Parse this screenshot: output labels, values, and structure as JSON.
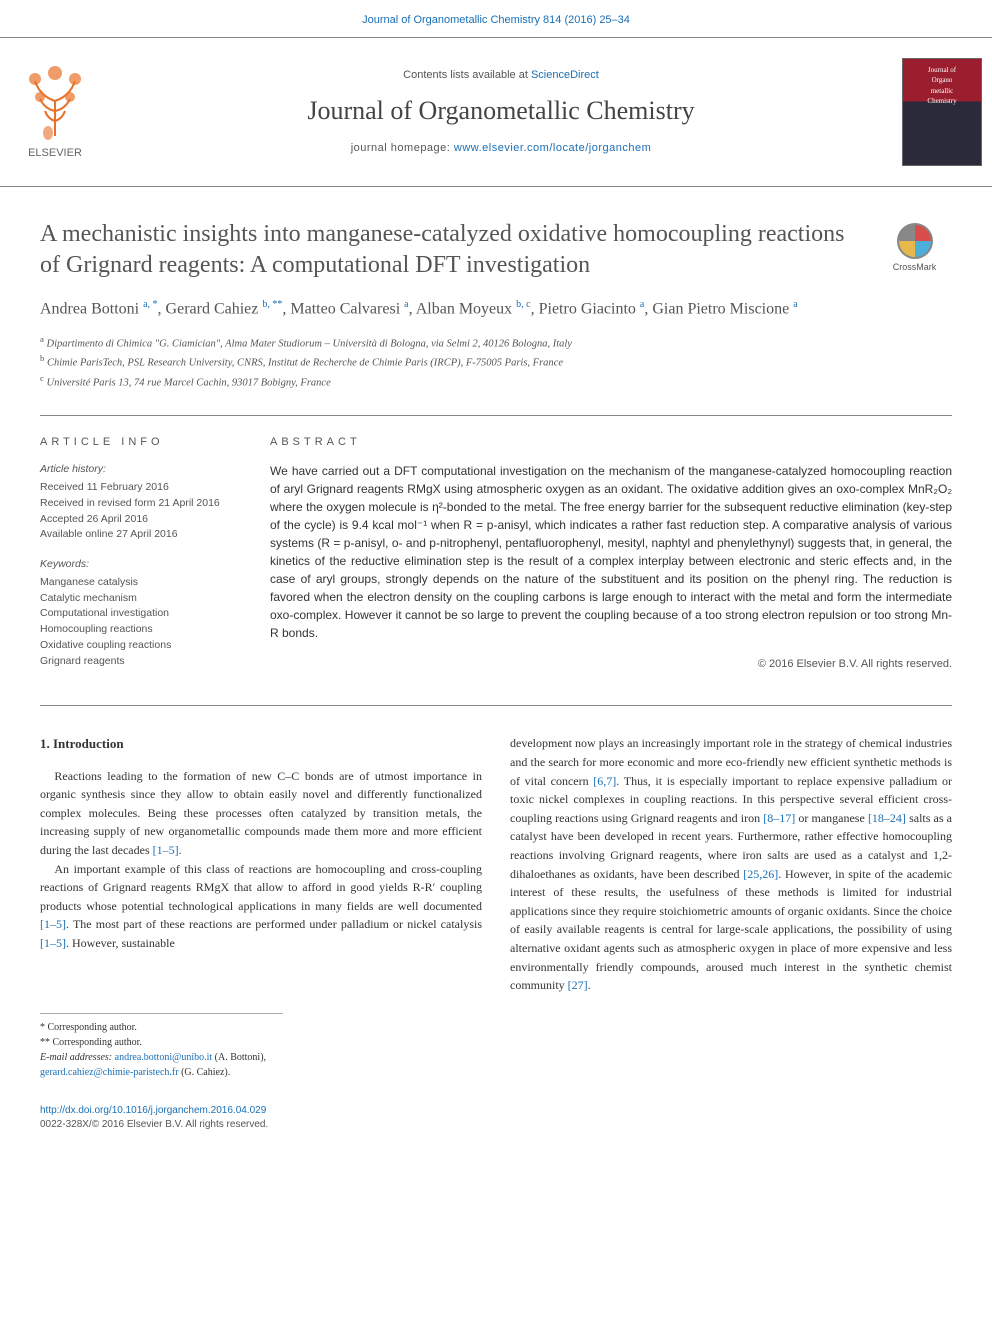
{
  "top_link": "Journal of Organometallic Chemistry 814 (2016) 25–34",
  "header": {
    "contents_text": "Contents lists available at ",
    "sciencedirect": "ScienceDirect",
    "journal_name": "Journal of Organometallic Chemistry",
    "homepage_label": "journal homepage: ",
    "homepage_url": "www.elsevier.com/locate/jorganchem",
    "elsevier": "ELSEVIER",
    "cover_line1": "Journal of",
    "cover_line2": "Organo",
    "cover_line3": "metallic",
    "cover_line4": "Chemistry"
  },
  "article": {
    "title": "A mechanistic insights into manganese-catalyzed oxidative homocoupling reactions of Grignard reagents: A computational DFT investigation",
    "crossmark": "CrossMark",
    "authors_html": "Andrea Bottoni <sup>a, *</sup>, Gerard Cahiez <sup>b, **</sup>, Matteo Calvaresi <sup>a</sup>, Alban Moyeux <sup>b, c</sup>, Pietro Giacinto <sup>a</sup>, Gian Pietro Miscione <sup>a</sup>",
    "affiliations": {
      "a": "Dipartimento di Chimica \"G. Ciamician\", Alma Mater Studiorum – Università di Bologna, via Selmi 2, 40126 Bologna, Italy",
      "b": "Chimie ParisTech, PSL Research University, CNRS, Institut de Recherche de Chimie Paris (IRCP), F-75005 Paris, France",
      "c": "Université Paris 13, 74 rue Marcel Cachin, 93017 Bobigny, France"
    }
  },
  "info": {
    "heading": "ARTICLE INFO",
    "history_label": "Article history:",
    "received": "Received 11 February 2016",
    "revised": "Received in revised form 21 April 2016",
    "accepted": "Accepted 26 April 2016",
    "online": "Available online 27 April 2016",
    "keywords_label": "Keywords:",
    "kw1": "Manganese catalysis",
    "kw2": "Catalytic mechanism",
    "kw3": "Computational investigation",
    "kw4": "Homocoupling reactions",
    "kw5": "Oxidative coupling reactions",
    "kw6": "Grignard reagents"
  },
  "abstract": {
    "heading": "ABSTRACT",
    "text": "We have carried out a DFT computational investigation on the mechanism of the manganese-catalyzed homocoupling reaction of aryl Grignard reagents RMgX using atmospheric oxygen as an oxidant. The oxidative addition gives an oxo-complex MnR₂O₂ where the oxygen molecule is η²-bonded to the metal. The free energy barrier for the subsequent reductive elimination (key-step of the cycle) is 9.4 kcal mol⁻¹ when R = p-anisyl, which indicates a rather fast reduction step. A comparative analysis of various systems (R = p-anisyl, o- and p-nitrophenyl, pentafluorophenyl, mesityl, naphtyl and phenylethynyl) suggests that, in general, the kinetics of the reductive elimination step is the result of a complex interplay between electronic and steric effects and, in the case of aryl groups, strongly depends on the nature of the substituent and its position on the phenyl ring. The reduction is favored when the electron density on the coupling carbons is large enough to interact with the metal and form the intermediate oxo-complex. However it cannot be so large to prevent the coupling because of a too strong electron repulsion or too strong Mn-R bonds.",
    "copyright": "© 2016 Elsevier B.V. All rights reserved."
  },
  "body": {
    "intro_heading": "1. Introduction",
    "p1a": "Reactions leading to the formation of new C–C bonds are of utmost importance in organic synthesis since they allow to obtain easily novel and differently functionalized complex molecules. Being these processes often catalyzed by transition metals, the increasing supply of new organometallic compounds made them more and more efficient during the last decades ",
    "ref1": "[1–5]",
    "p1b": ".",
    "p2a": "An important example of this class of reactions are homocoupling and cross-coupling reactions of Grignard reagents RMgX that allow to afford in good yields R-R′ coupling products whose potential technological applications in many fields are well documented ",
    "ref2": "[1–5]",
    "p2b": ". The most part of these reactions are performed under palladium or nickel catalysis ",
    "ref3": "[1–5]",
    "p2c": ". However, sustainable ",
    "p3a": "development now plays an increasingly important role in the strategy of chemical industries and the search for more economic and more eco-friendly new efficient synthetic methods is of vital concern ",
    "ref4": "[6,7]",
    "p3b": ". Thus, it is especially important to replace expensive palladium or toxic nickel complexes in coupling reactions. In this perspective several efficient cross-coupling reactions using Grignard reagents and iron ",
    "ref5": "[8–17]",
    "p3c": " or manganese ",
    "ref6": "[18–24]",
    "p3d": " salts as a catalyst have been developed in recent years. Furthermore, rather effective homocoupling reactions involving Grignard reagents, where iron salts are used as a catalyst and 1,2-dihaloethanes as oxidants, have been described ",
    "ref7": "[25,26]",
    "p3e": ". However, in spite of the academic interest of these results, the usefulness of these methods is limited for industrial applications since they require stoichiometric amounts of organic oxidants. Since the choice of easily available reagents is central for large-scale applications, the possibility of using alternative oxidant agents such as atmospheric oxygen in place of more expensive and less environmentally friendly compounds, aroused much interest in the synthetic chemist community ",
    "ref8": "[27]",
    "p3f": "."
  },
  "footnotes": {
    "corr1": "* Corresponding author.",
    "corr2": "** Corresponding author.",
    "email_label": "E-mail addresses: ",
    "email1": "andrea.bottoni@unibo.it",
    "email1_name": " (A. Bottoni), ",
    "email2": "gerard.cahiez@chimie-paristech.fr",
    "email2_name": " (G. Cahiez)."
  },
  "doi": {
    "link": "http://dx.doi.org/10.1016/j.jorganchem.2016.04.029",
    "issn": "0022-328X/© 2016 Elsevier B.V. All rights reserved."
  },
  "colors": {
    "link": "#1a6fb5",
    "text": "#333333",
    "muted": "#555555",
    "border": "#888888",
    "elsevier_orange": "#e8722a",
    "cover_red": "#9a1e2e"
  }
}
